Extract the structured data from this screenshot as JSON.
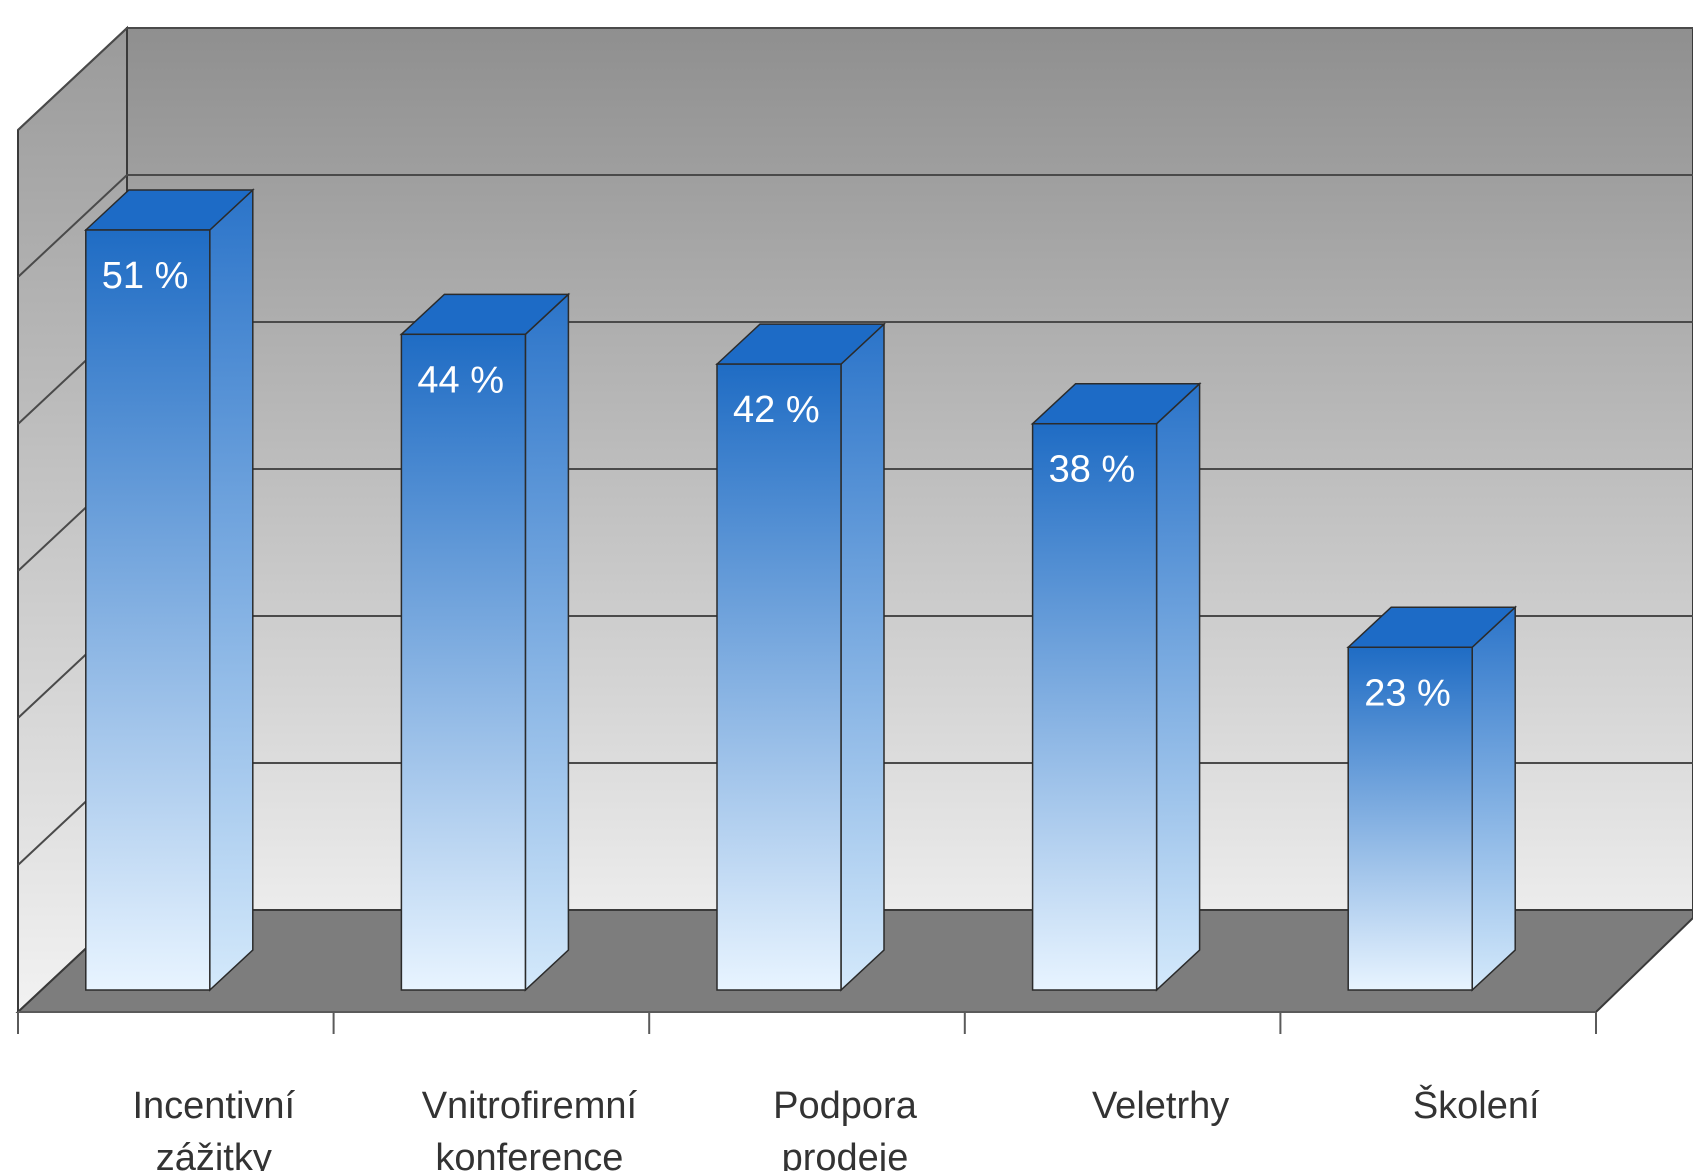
{
  "chart_data": {
    "type": "bar",
    "categories": [
      [
        "Incentivní",
        "zážitky"
      ],
      [
        "Vnitrofiremní",
        "konference"
      ],
      [
        "Podpora",
        "prodeje"
      ],
      [
        "Veletrhy"
      ],
      [
        "Školení"
      ]
    ],
    "values": [
      51,
      44,
      42,
      38,
      23
    ],
    "value_labels": [
      "51 %",
      "44 %",
      "42 %",
      "38 %",
      "23 %"
    ],
    "ylim": [
      0,
      60
    ],
    "grid": true,
    "colors": {
      "bar_top": "#1f6cc4",
      "bar_bottom": "#e6f3ff",
      "bar_side_top": "#2a72c8",
      "bar_side_bottom": "#cfe6fa",
      "bar_cap": "#1d6bc6",
      "wall_top": "#8f8f8f",
      "wall_bottom": "#e9e9e9",
      "floor": "#7d7d7d",
      "gridline": "#4a4a4a"
    }
  }
}
